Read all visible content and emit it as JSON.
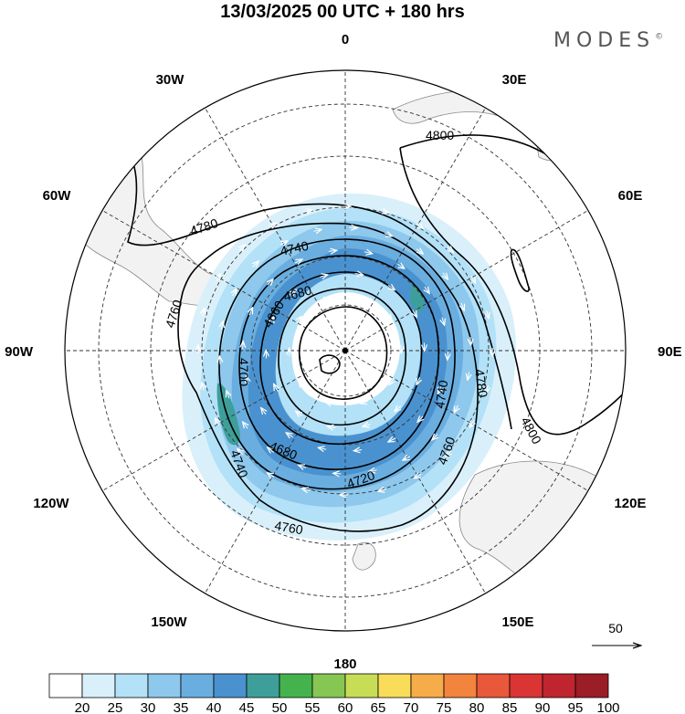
{
  "title": "13/03/2025  00 UTC  + 180 hrs",
  "brand": "MODES",
  "brand_mark": "©",
  "longitude_labels": [
    "0",
    "30E",
    "60E",
    "90E",
    "120E",
    "150E",
    "180",
    "150W",
    "120W",
    "90W",
    "60W",
    "30W"
  ],
  "contour_labels": [
    "4800",
    "4800",
    "4780",
    "4780",
    "4760",
    "4760",
    "4760",
    "4740",
    "4740",
    "4740",
    "4720",
    "4700",
    "4680",
    "4680",
    "4660"
  ],
  "wind_reference": {
    "label": "50"
  },
  "colorbar": {
    "labels": [
      "20",
      "25",
      "30",
      "35",
      "40",
      "45",
      "50",
      "55",
      "60",
      "65",
      "70",
      "75",
      "80",
      "85",
      "90",
      "95",
      "100"
    ],
    "colors": [
      "#ffffff",
      "#d9f0fb",
      "#b3e1f7",
      "#8ec8ec",
      "#6aaee0",
      "#4a92cf",
      "#3e9f9a",
      "#45b34d",
      "#86c653",
      "#c7dd55",
      "#f8dc5a",
      "#f6ac49",
      "#f2843d",
      "#e9583a",
      "#da3434",
      "#c0252f",
      "#9b1d25"
    ]
  },
  "chart_data": {
    "type": "polar_stereographic_map",
    "hemisphere": "south",
    "field_contours": "geopotential height",
    "contour_values": [
      4660,
      4680,
      4700,
      4720,
      4740,
      4760,
      4780,
      4800
    ],
    "shading": "wind speed",
    "shading_levels": [
      20,
      25,
      30,
      35,
      40,
      45,
      50,
      55,
      60,
      65,
      70,
      75,
      80,
      85,
      90,
      95,
      100
    ],
    "wind_reference_vector": 50
  }
}
